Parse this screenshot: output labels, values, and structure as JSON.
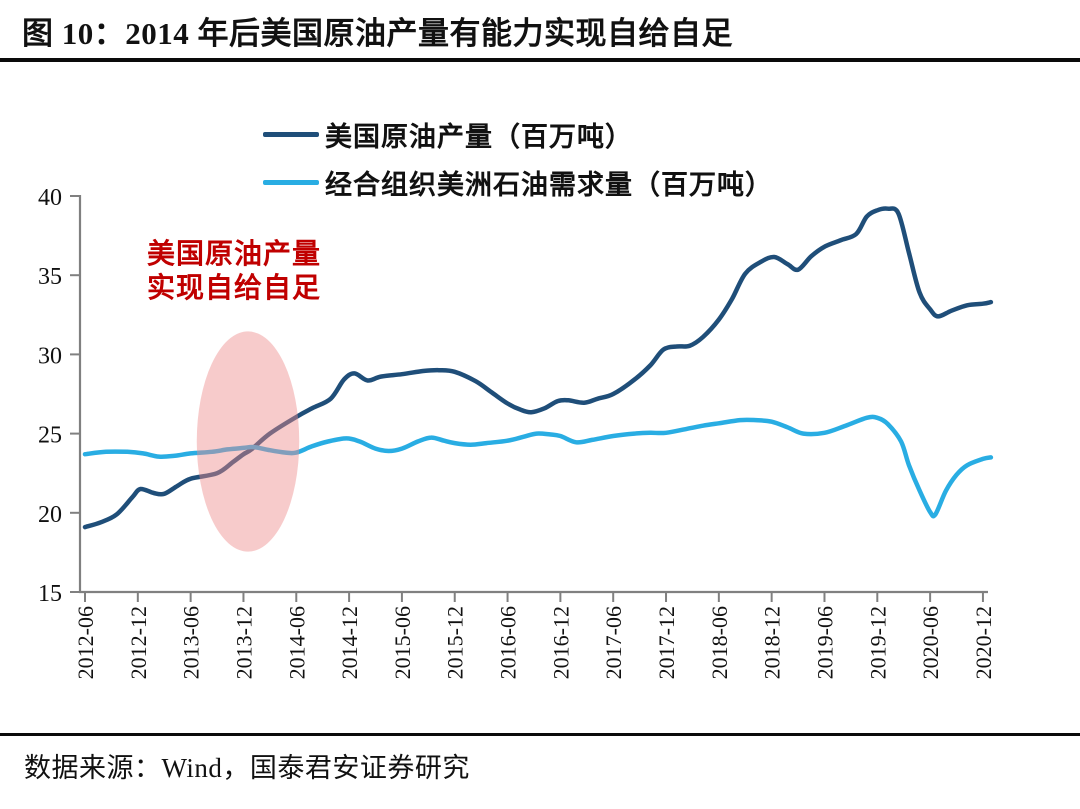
{
  "figure": {
    "title": "图 10：2014 年后美国原油产量有能力实现自给自足",
    "annotation_line1": "美国原油产量",
    "annotation_line2": "实现自给自足",
    "source": "数据来源：Wind，国泰君安证券研究"
  },
  "colors": {
    "production": "#1f4e79",
    "demand": "#29ade3",
    "annotation": "#c00000",
    "highlight": "#ee8c8c",
    "axis": "#808080",
    "tick_text": "#111111"
  },
  "chart_data": {
    "type": "line",
    "title": "图 10：2014 年后美国原油产量有能力实现自给自足",
    "xlabel": "",
    "ylabel": "",
    "ylim": [
      15,
      40
    ],
    "y_ticks": [
      15,
      20,
      25,
      30,
      35,
      40
    ],
    "x_ticks": [
      "2012-06",
      "2012-12",
      "2013-06",
      "2013-12",
      "2014-06",
      "2014-12",
      "2015-06",
      "2015-12",
      "2016-06",
      "2016-12",
      "2017-06",
      "2017-12",
      "2018-06",
      "2018-12",
      "2019-06",
      "2019-12",
      "2020-06",
      "2020-12"
    ],
    "x_unit": "half-year index, 0 = 2012-06, 17 = 2020-12",
    "grid": false,
    "legend_position": "top-center",
    "series": [
      {
        "name": "美国原油产量（百万吨）",
        "color_key": "production",
        "points": [
          [
            0,
            19.1
          ],
          [
            0.3,
            19.4
          ],
          [
            0.6,
            19.9
          ],
          [
            0.9,
            21.0
          ],
          [
            1.05,
            21.5
          ],
          [
            1.3,
            21.25
          ],
          [
            1.5,
            21.2
          ],
          [
            1.75,
            21.7
          ],
          [
            2,
            22.15
          ],
          [
            2.5,
            22.5
          ],
          [
            2.8,
            23.2
          ],
          [
            3,
            23.7
          ],
          [
            3.15,
            24.0
          ],
          [
            3.5,
            25.0
          ],
          [
            4,
            26.05
          ],
          [
            4.3,
            26.6
          ],
          [
            4.65,
            27.2
          ],
          [
            4.9,
            28.4
          ],
          [
            5.1,
            28.8
          ],
          [
            5.35,
            28.35
          ],
          [
            5.6,
            28.6
          ],
          [
            6,
            28.75
          ],
          [
            6.4,
            28.95
          ],
          [
            6.7,
            29.0
          ],
          [
            7,
            28.9
          ],
          [
            7.4,
            28.3
          ],
          [
            7.7,
            27.6
          ],
          [
            8,
            26.9
          ],
          [
            8.25,
            26.5
          ],
          [
            8.45,
            26.35
          ],
          [
            8.7,
            26.6
          ],
          [
            8.95,
            27.05
          ],
          [
            9.15,
            27.1
          ],
          [
            9.45,
            26.95
          ],
          [
            9.7,
            27.2
          ],
          [
            10,
            27.5
          ],
          [
            10.4,
            28.4
          ],
          [
            10.7,
            29.3
          ],
          [
            10.95,
            30.3
          ],
          [
            11.2,
            30.5
          ],
          [
            11.45,
            30.55
          ],
          [
            11.7,
            31.1
          ],
          [
            12,
            32.2
          ],
          [
            12.25,
            33.5
          ],
          [
            12.5,
            35.1
          ],
          [
            12.8,
            35.85
          ],
          [
            13.05,
            36.15
          ],
          [
            13.3,
            35.7
          ],
          [
            13.5,
            35.35
          ],
          [
            13.75,
            36.2
          ],
          [
            14,
            36.8
          ],
          [
            14.3,
            37.2
          ],
          [
            14.6,
            37.6
          ],
          [
            14.8,
            38.7
          ],
          [
            15,
            39.1
          ],
          [
            15.2,
            39.2
          ],
          [
            15.4,
            38.9
          ],
          [
            15.6,
            36.4
          ],
          [
            15.8,
            33.9
          ],
          [
            16,
            32.85
          ],
          [
            16.15,
            32.4
          ],
          [
            16.4,
            32.75
          ],
          [
            16.7,
            33.1
          ],
          [
            17,
            33.2
          ],
          [
            17.15,
            33.3
          ]
        ]
      },
      {
        "name": "经合组织美洲石油需求量（百万吨）",
        "color_key": "demand",
        "points": [
          [
            0,
            23.7
          ],
          [
            0.4,
            23.85
          ],
          [
            0.8,
            23.85
          ],
          [
            1.1,
            23.75
          ],
          [
            1.4,
            23.55
          ],
          [
            1.7,
            23.6
          ],
          [
            2,
            23.75
          ],
          [
            2.4,
            23.85
          ],
          [
            2.7,
            24.0
          ],
          [
            3,
            24.1
          ],
          [
            3.2,
            24.15
          ],
          [
            3.5,
            23.95
          ],
          [
            3.8,
            23.8
          ],
          [
            4,
            23.8
          ],
          [
            4.3,
            24.2
          ],
          [
            4.6,
            24.5
          ],
          [
            4.95,
            24.7
          ],
          [
            5.2,
            24.5
          ],
          [
            5.5,
            24.05
          ],
          [
            5.75,
            23.9
          ],
          [
            6,
            24.05
          ],
          [
            6.3,
            24.5
          ],
          [
            6.55,
            24.75
          ],
          [
            6.8,
            24.55
          ],
          [
            7,
            24.4
          ],
          [
            7.3,
            24.3
          ],
          [
            7.6,
            24.4
          ],
          [
            8,
            24.55
          ],
          [
            8.3,
            24.8
          ],
          [
            8.55,
            25.0
          ],
          [
            8.8,
            24.95
          ],
          [
            9,
            24.85
          ],
          [
            9.3,
            24.45
          ],
          [
            9.6,
            24.6
          ],
          [
            10,
            24.85
          ],
          [
            10.4,
            25.0
          ],
          [
            10.7,
            25.05
          ],
          [
            11,
            25.05
          ],
          [
            11.4,
            25.3
          ],
          [
            11.7,
            25.5
          ],
          [
            12,
            25.65
          ],
          [
            12.4,
            25.85
          ],
          [
            12.7,
            25.85
          ],
          [
            13,
            25.75
          ],
          [
            13.3,
            25.4
          ],
          [
            13.6,
            25.0
          ],
          [
            14,
            25.05
          ],
          [
            14.4,
            25.5
          ],
          [
            14.8,
            26.0
          ],
          [
            15,
            26.0
          ],
          [
            15.2,
            25.6
          ],
          [
            15.45,
            24.5
          ],
          [
            15.6,
            23.0
          ],
          [
            15.8,
            21.4
          ],
          [
            16,
            20.05
          ],
          [
            16.1,
            19.9
          ],
          [
            16.3,
            21.4
          ],
          [
            16.5,
            22.4
          ],
          [
            16.7,
            23.0
          ],
          [
            17,
            23.4
          ],
          [
            17.15,
            23.5
          ]
        ]
      }
    ],
    "highlight_ellipse": {
      "x_index": 3.086,
      "y_value": 24.5,
      "rx_index": 0.97,
      "ry_value": 6.95,
      "note": "美国原油产量实现自给自足"
    }
  }
}
